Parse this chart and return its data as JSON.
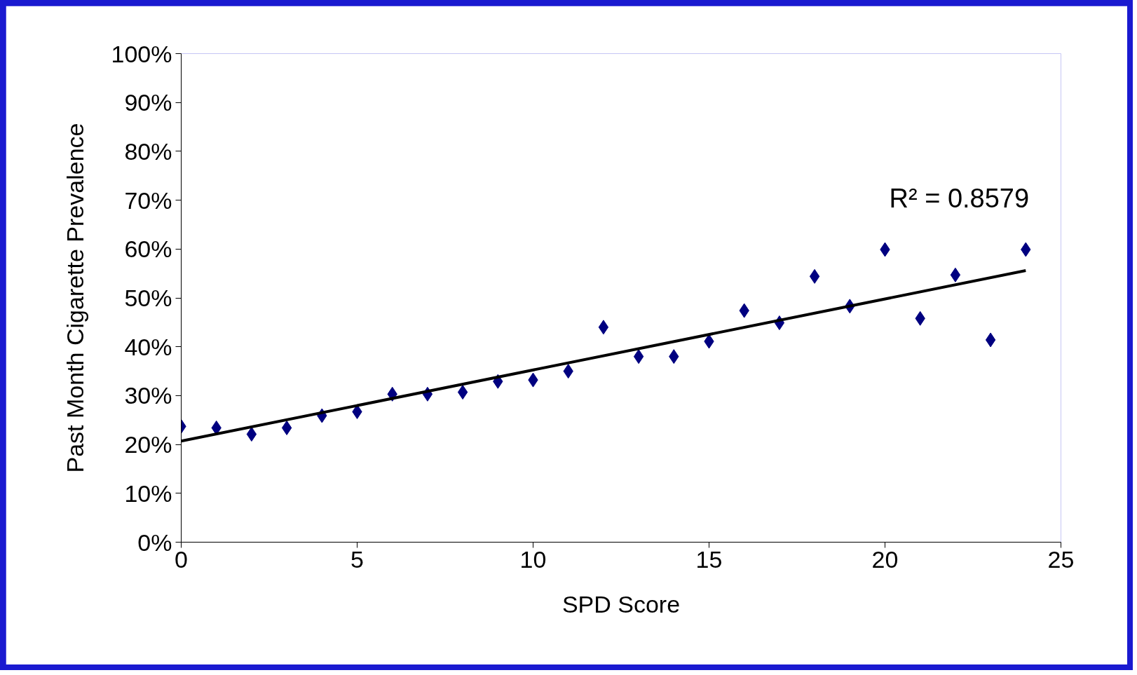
{
  "chart_data": {
    "type": "scatter",
    "xlabel": "SPD Score",
    "ylabel": "Past Month Cigarette Prevalence",
    "annotations": [
      "R² = 0.8579"
    ],
    "xlim": [
      0,
      25
    ],
    "xticks": [
      0,
      5,
      10,
      15,
      20,
      25
    ],
    "ylim": [
      0,
      100
    ],
    "yticks": [
      {
        "value": 0,
        "label": "0%"
      },
      {
        "value": 10,
        "label": "10%"
      },
      {
        "value": 20,
        "label": "20%"
      },
      {
        "value": 30,
        "label": "30%"
      },
      {
        "value": 40,
        "label": "40%"
      },
      {
        "value": 50,
        "label": "50%"
      },
      {
        "value": 60,
        "label": "60%"
      },
      {
        "value": 70,
        "label": "70%"
      },
      {
        "value": 80,
        "label": "80%"
      },
      {
        "value": 90,
        "label": "90%"
      },
      {
        "value": 100,
        "label": "100%"
      }
    ],
    "grid": false,
    "series": [
      {
        "marker": "diamond",
        "color": "#000080",
        "x": [
          0,
          1,
          2,
          3,
          4,
          5,
          6,
          7,
          8,
          9,
          10,
          11,
          12,
          13,
          14,
          15,
          16,
          17,
          18,
          19,
          20,
          21,
          22,
          23,
          24
        ],
        "values": [
          23.7,
          23.4,
          22.1,
          23.4,
          25.9,
          26.7,
          30.3,
          30.3,
          30.7,
          32.9,
          33.2,
          35.0,
          44.0,
          38.0,
          38.0,
          41.1,
          47.4,
          44.9,
          54.4,
          48.3,
          59.9,
          45.8,
          54.7,
          41.4,
          59.9
        ]
      },
      {
        "type": "line",
        "color": "#000000",
        "x": [
          0,
          24
        ],
        "values": [
          20.7,
          55.6
        ]
      }
    ]
  }
}
